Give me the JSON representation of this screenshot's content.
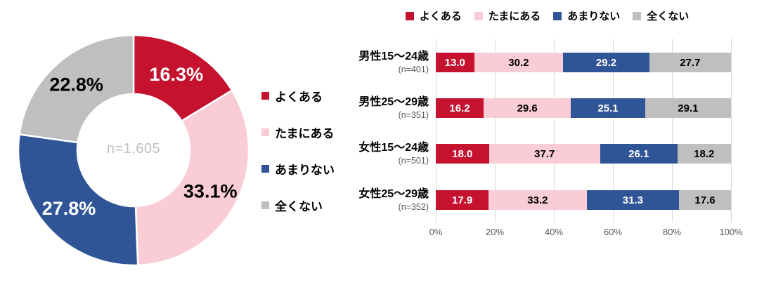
{
  "chart_data": [
    {
      "type": "pie",
      "subtype": "donut",
      "center_label": "n=1,605",
      "labels": [
        "よくある",
        "たまにある",
        "あまりない",
        "全くない"
      ],
      "values": [
        16.3,
        33.1,
        27.8,
        22.8
      ],
      "value_labels": [
        "16.3%",
        "33.1%",
        "27.8%",
        "22.8%"
      ],
      "colors": [
        "#C4122F",
        "#F9CCD6",
        "#2F5597",
        "#BFBFBF"
      ],
      "value_label_colors": [
        "#FFFFFF",
        "#000000",
        "#FFFFFF",
        "#000000"
      ],
      "legend_position": "right",
      "start_angle": "top",
      "direction": "clockwise"
    },
    {
      "type": "bar",
      "orientation": "horizontal",
      "stacked": true,
      "legend_position": "top",
      "grid": true,
      "xlim": [
        0,
        100
      ],
      "x_ticks": [
        "0%",
        "20%",
        "40%",
        "60%",
        "80%",
        "100%"
      ],
      "categories": [
        "男性15～24歳",
        "男性25～29歳",
        "女性15～24歳",
        "女性25～29歳"
      ],
      "category_sublabels": [
        "(n=401)",
        "(n=351)",
        "(n=501)",
        "(n=352)"
      ],
      "series": [
        {
          "name": "よくある",
          "color": "#C4122F",
          "label_color": "#FFFFFF",
          "values": [
            13.0,
            16.2,
            18.0,
            17.9
          ]
        },
        {
          "name": "たまにある",
          "color": "#F9CCD6",
          "label_color": "#000000",
          "values": [
            30.2,
            29.6,
            37.7,
            33.2
          ]
        },
        {
          "name": "あまりない",
          "color": "#2F5597",
          "label_color": "#FFFFFF",
          "values": [
            29.2,
            25.1,
            26.1,
            31.3
          ]
        },
        {
          "name": "全くない",
          "color": "#BFBFBF",
          "label_color": "#000000",
          "values": [
            27.7,
            29.1,
            18.2,
            17.6
          ]
        }
      ]
    }
  ]
}
